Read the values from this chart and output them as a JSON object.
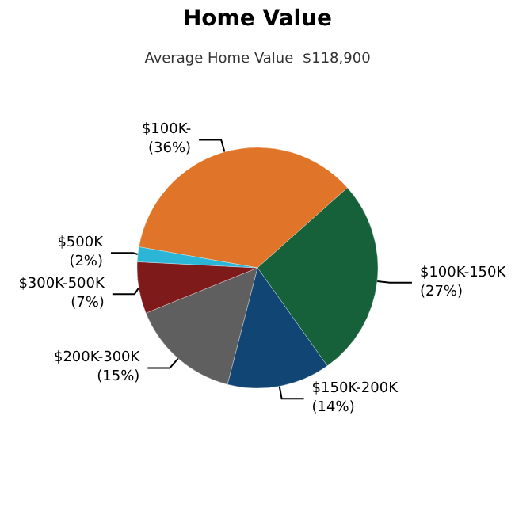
{
  "chart_data": {
    "type": "pie",
    "title": "Home Value",
    "subtitle": "Average Home Value  $118,900",
    "categories": [
      "$100K-",
      "$100K-150K",
      "$150K-200K",
      "$200K-300K",
      "$300K-500K",
      "$500K"
    ],
    "values": [
      36,
      27,
      14,
      15,
      7,
      2
    ],
    "value_labels": [
      "(36%)",
      "(27%)",
      "(14%)",
      "(15%)",
      "(7%)",
      "(2%)"
    ],
    "colors": [
      "#e07428",
      "#17613a",
      "#114674",
      "#5f5f5f",
      "#7e1a1a",
      "#2bb5d6"
    ],
    "legend": false
  }
}
